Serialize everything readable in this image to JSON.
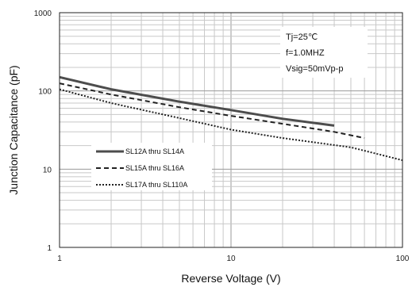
{
  "chart_data": {
    "type": "line",
    "xlabel": "Reverse Voltage (V)",
    "ylabel": "Junction Capacitance (pF)",
    "x_scale": "log",
    "y_scale": "log",
    "xlim": [
      1,
      100
    ],
    "ylim": [
      1,
      1000
    ],
    "x_ticks": [
      "1",
      "10",
      "100"
    ],
    "y_ticks": [
      "1",
      "10",
      "100",
      "1000"
    ],
    "grid": true,
    "legend_position": "lower-left",
    "annotations": [
      "Tj=25℃",
      "f=1.0MHZ",
      "Vsig=50mVp-p"
    ],
    "series": [
      {
        "name": "SL12A thru SL14A",
        "style": "solid",
        "color": "#4d4d4d",
        "x": [
          1,
          2,
          5,
          10,
          20,
          40
        ],
        "values": [
          150,
          105,
          73,
          57,
          44,
          36
        ]
      },
      {
        "name": "SL15A thru SL16A",
        "style": "dashed",
        "color": "#222222",
        "x": [
          1,
          2,
          5,
          10,
          20,
          40,
          60
        ],
        "values": [
          125,
          90,
          62,
          48,
          38,
          30,
          25
        ]
      },
      {
        "name": "SL17A thru SL110A",
        "style": "dotted",
        "color": "#222222",
        "x": [
          1,
          2,
          5,
          10,
          20,
          50,
          100
        ],
        "values": [
          105,
          70,
          45,
          32,
          25,
          19,
          13
        ]
      }
    ]
  }
}
